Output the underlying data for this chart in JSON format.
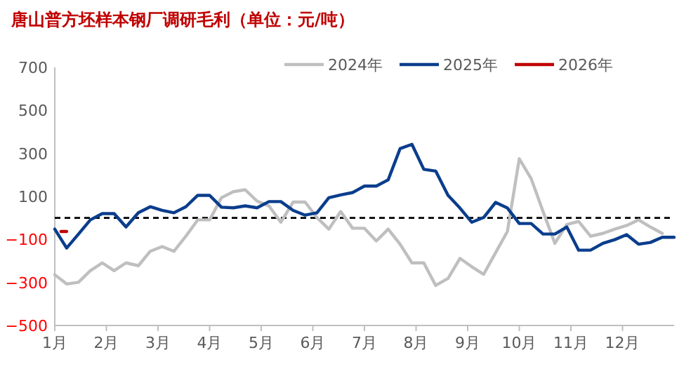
{
  "chart_data": {
    "type": "line",
    "title": "唐山普方坯样本钢厂调研毛利（单位：元/吨）",
    "x": [
      1.0,
      1.23,
      1.46,
      1.69,
      1.92,
      2.15,
      2.38,
      2.62,
      2.85,
      3.08,
      3.31,
      3.54,
      3.77,
      4.0,
      4.23,
      4.46,
      4.69,
      4.92,
      5.15,
      5.38,
      5.62,
      5.85,
      6.08,
      6.31,
      6.54,
      6.77,
      7.0,
      7.23,
      7.46,
      7.69,
      7.92,
      8.15,
      8.38,
      8.62,
      8.85,
      9.08,
      9.31,
      9.54,
      9.77,
      10.0,
      10.23,
      10.46,
      10.69,
      10.92,
      11.15,
      11.38,
      11.62,
      11.85,
      12.08,
      12.31,
      12.54,
      12.77,
      13.0
    ],
    "xlim": [
      1,
      13
    ],
    "xticks": [
      {
        "value": 1,
        "label": "1月"
      },
      {
        "value": 2,
        "label": "2月"
      },
      {
        "value": 3,
        "label": "3月"
      },
      {
        "value": 4,
        "label": "4月"
      },
      {
        "value": 5,
        "label": "5月"
      },
      {
        "value": 6,
        "label": "6月"
      },
      {
        "value": 7,
        "label": "7月"
      },
      {
        "value": 8,
        "label": "8月"
      },
      {
        "value": 9,
        "label": "9月"
      },
      {
        "value": 10,
        "label": "10月"
      },
      {
        "value": 11,
        "label": "11月"
      },
      {
        "value": 12,
        "label": "12月"
      }
    ],
    "ylim": [
      -500,
      700
    ],
    "yticks": [
      700,
      500,
      300,
      100,
      {
        "value": -100,
        "label": "−100"
      },
      {
        "value": -300,
        "label": "−300"
      },
      {
        "value": -500,
        "label": "−500"
      }
    ],
    "legend": "top",
    "series": [
      {
        "name": "2024年",
        "color": "#bfbfbf",
        "values": [
          -264,
          -307,
          -299,
          -245,
          -209,
          -245,
          -209,
          -222,
          -155,
          -133,
          -155,
          -85,
          -9,
          -9,
          94,
          122,
          131,
          78,
          56,
          -20,
          74,
          74,
          2,
          -52,
          30,
          -48,
          -48,
          -107,
          -52,
          -122,
          -209,
          -209,
          -314,
          -281,
          -188,
          -227,
          -262,
          -162,
          -63,
          275,
          183,
          30,
          -118,
          -31,
          -16,
          -85,
          -72,
          -52,
          -35,
          -9,
          -42,
          -72,
          null
        ]
      },
      {
        "name": "2025年",
        "color": "#0a3d8c",
        "values": [
          -52,
          -140,
          -75,
          -9,
          20,
          20,
          -42,
          24,
          52,
          35,
          24,
          52,
          105,
          105,
          50,
          47,
          56,
          47,
          76,
          76,
          35,
          13,
          24,
          94,
          107,
          118,
          148,
          148,
          177,
          322,
          342,
          226,
          218,
          105,
          46,
          -20,
          2,
          72,
          46,
          -26,
          -26,
          -75,
          -75,
          -42,
          -150,
          -150,
          -118,
          -101,
          -78,
          -122,
          -114,
          -90,
          -90
        ]
      },
      {
        "name": "2026年",
        "color": "#c00000",
        "x": [
          1.12,
          1.23
        ],
        "values": [
          -63,
          -63
        ]
      }
    ],
    "ref_lines": [
      {
        "axis": "y",
        "value": 0,
        "color": "#000000",
        "line_style": "dashed"
      }
    ]
  }
}
